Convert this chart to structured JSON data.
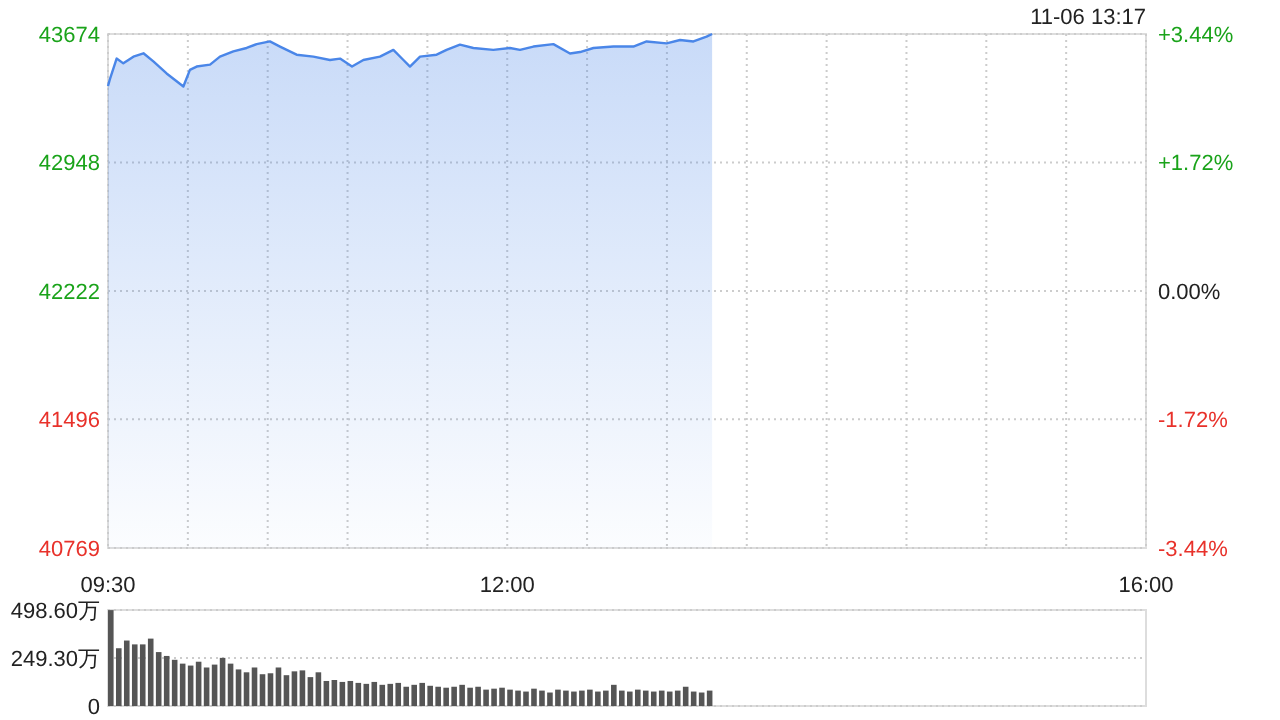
{
  "chart_data": [
    {
      "type": "area",
      "color": "#4a86e8",
      "x": [
        9.5,
        9.513,
        9.554,
        9.596,
        9.659,
        9.722,
        9.784,
        9.867,
        9.972,
        10.013,
        10.055,
        10.139,
        10.201,
        10.285,
        10.368,
        10.431,
        10.514,
        10.577,
        10.681,
        10.786,
        10.89,
        10.953,
        11.028,
        11.099,
        11.203,
        11.287,
        11.35,
        11.391,
        11.454,
        11.558,
        11.62,
        11.704,
        11.788,
        11.913,
        12.017,
        12.08,
        12.164,
        12.289,
        12.393,
        12.456,
        12.54,
        12.665,
        12.79,
        12.873,
        12.998,
        13.082,
        13.166,
        13.248,
        13.283
      ],
      "values": [
        43380,
        43422,
        43535,
        43508,
        43546,
        43565,
        43519,
        43451,
        43377,
        43471,
        43490,
        43501,
        43546,
        43576,
        43595,
        43617,
        43632,
        43603,
        43557,
        43546,
        43527,
        43535,
        43490,
        43527,
        43546,
        43584,
        43527,
        43490,
        43546,
        43557,
        43584,
        43614,
        43595,
        43584,
        43595,
        43584,
        43603,
        43617,
        43564,
        43572,
        43595,
        43603,
        43603,
        43632,
        43621,
        43640,
        43632,
        43659,
        43674
      ],
      "xlim": [
        9.5,
        16
      ],
      "xticks": [
        {
          "value": 9.5,
          "label": "09:30"
        },
        {
          "value": 10,
          "label": null
        },
        {
          "value": 10.5,
          "label": null
        },
        {
          "value": 11,
          "label": null
        },
        {
          "value": 11.5,
          "label": null
        },
        {
          "value": 12,
          "label": "12:00"
        },
        {
          "value": 12.5,
          "label": null
        },
        {
          "value": 13,
          "label": null
        },
        {
          "value": 13.5,
          "label": null
        },
        {
          "value": 14,
          "label": null
        },
        {
          "value": 14.5,
          "label": null
        },
        {
          "value": 15,
          "label": null
        },
        {
          "value": 15.5,
          "label": null
        },
        {
          "value": 16,
          "label": "16:00"
        }
      ],
      "ylim": [
        40769,
        43674
      ],
      "yticks": [
        40769,
        41496,
        42222,
        42948,
        43674
      ],
      "y2lim": [
        -3.44,
        3.44
      ],
      "y2ticks": [
        {
          "value": -3.44,
          "label": "-3.44%"
        },
        {
          "value": -1.72,
          "label": "-1.72%"
        },
        {
          "value": 0,
          "label": "0.00%"
        },
        {
          "value": 1.72,
          "label": "+1.72%"
        },
        {
          "value": 3.44,
          "label": "+3.44%"
        }
      ],
      "grid": true,
      "annotations": [
        "11-06 13:17"
      ]
    },
    {
      "type": "bar",
      "color": "#555555",
      "x": [
        9.5,
        9.55,
        9.6,
        9.65,
        9.7,
        9.75,
        9.8,
        9.85,
        9.9,
        9.95,
        10,
        10.05,
        10.1,
        10.15,
        10.2,
        10.25,
        10.3,
        10.35,
        10.4,
        10.45,
        10.5,
        10.55,
        10.6,
        10.65,
        10.7,
        10.75,
        10.8,
        10.85,
        10.9,
        10.95,
        11,
        11.05,
        11.1,
        11.15,
        11.2,
        11.25,
        11.3,
        11.35,
        11.4,
        11.45,
        11.5,
        11.55,
        11.6,
        11.65,
        11.7,
        11.75,
        11.8,
        11.85,
        11.9,
        11.95,
        12,
        12.05,
        12.1,
        12.15,
        12.2,
        12.25,
        12.3,
        12.35,
        12.4,
        12.45,
        12.5,
        12.55,
        12.6,
        12.65,
        12.7,
        12.75,
        12.8,
        12.85,
        12.9,
        12.95,
        13,
        13.05,
        13.1,
        13.15,
        13.2,
        13.25
      ],
      "values": [
        498,
        300,
        340,
        320,
        320,
        350,
        280,
        260,
        240,
        220,
        210,
        230,
        200,
        215,
        250,
        220,
        190,
        175,
        200,
        165,
        170,
        200,
        160,
        180,
        185,
        150,
        175,
        130,
        135,
        125,
        130,
        120,
        115,
        125,
        110,
        115,
        120,
        100,
        110,
        120,
        105,
        100,
        95,
        100,
        110,
        95,
        100,
        85,
        90,
        95,
        85,
        80,
        75,
        90,
        80,
        70,
        85,
        80,
        75,
        80,
        85,
        75,
        80,
        110,
        80,
        75,
        85,
        80,
        75,
        80,
        75,
        80,
        100,
        75,
        70,
        80
      ],
      "xlim": [
        9.5,
        16
      ],
      "ylim": [
        0,
        498.6
      ],
      "yticks": [
        0,
        {
          "value": 249.3,
          "label": "249.30万"
        },
        {
          "value": 498.6,
          "label": "498.60万"
        }
      ],
      "grid": "y",
      "tick_labels": "y"
    }
  ]
}
